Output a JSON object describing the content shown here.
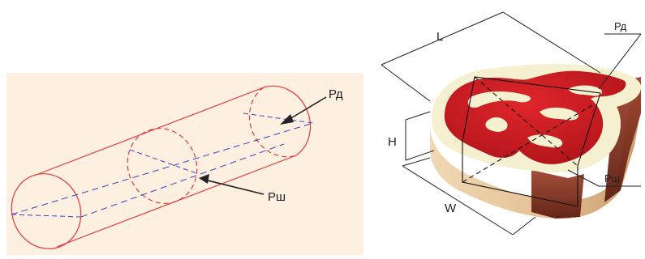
{
  "left_panel": {
    "label_long_axis": "Рд",
    "label_short_axis": "Рш"
  },
  "right_panel": {
    "label_length": "L",
    "label_height": "H",
    "label_width": "W",
    "label_long_axis": "Рд",
    "label_short_axis": "Рш"
  },
  "colors": {
    "left_background": "#fdf0e1",
    "cylinder_stroke": "#e23b3b",
    "axis_dash": "#4a4fc0",
    "meat_red": "#c8191f",
    "fat_cream": "#f5f0cf",
    "edge_tan": "#e5c59a",
    "edge_dark": "#7a2c1d"
  }
}
